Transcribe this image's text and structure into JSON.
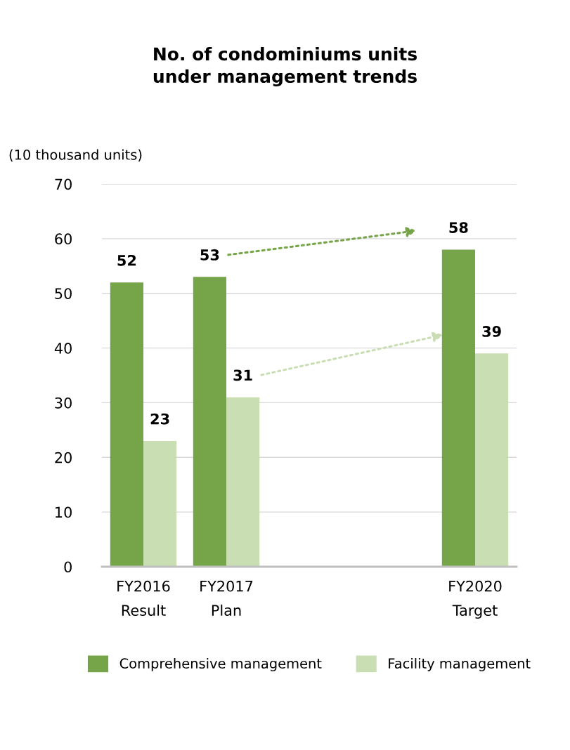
{
  "chart_data": {
    "type": "bar",
    "title": "No. of condominiums units\nunder management trends",
    "ylabel": "(10 thousand units)",
    "categories": [
      "FY2016\nResult",
      "FY2017\nPlan",
      null,
      null,
      "FY2020\nTarget"
    ],
    "series": [
      {
        "name": "Comprehensive management",
        "color": "#76a449",
        "values": [
          52,
          53,
          null,
          null,
          58
        ]
      },
      {
        "name": "Facility management",
        "color": "#c9deb3",
        "values": [
          23,
          31,
          null,
          null,
          39
        ]
      }
    ],
    "ylim": [
      0,
      70
    ],
    "yticks": [
      0,
      10,
      20,
      30,
      40,
      50,
      60,
      70
    ],
    "grid": "y",
    "legend": "bottom",
    "data_labels": true
  }
}
